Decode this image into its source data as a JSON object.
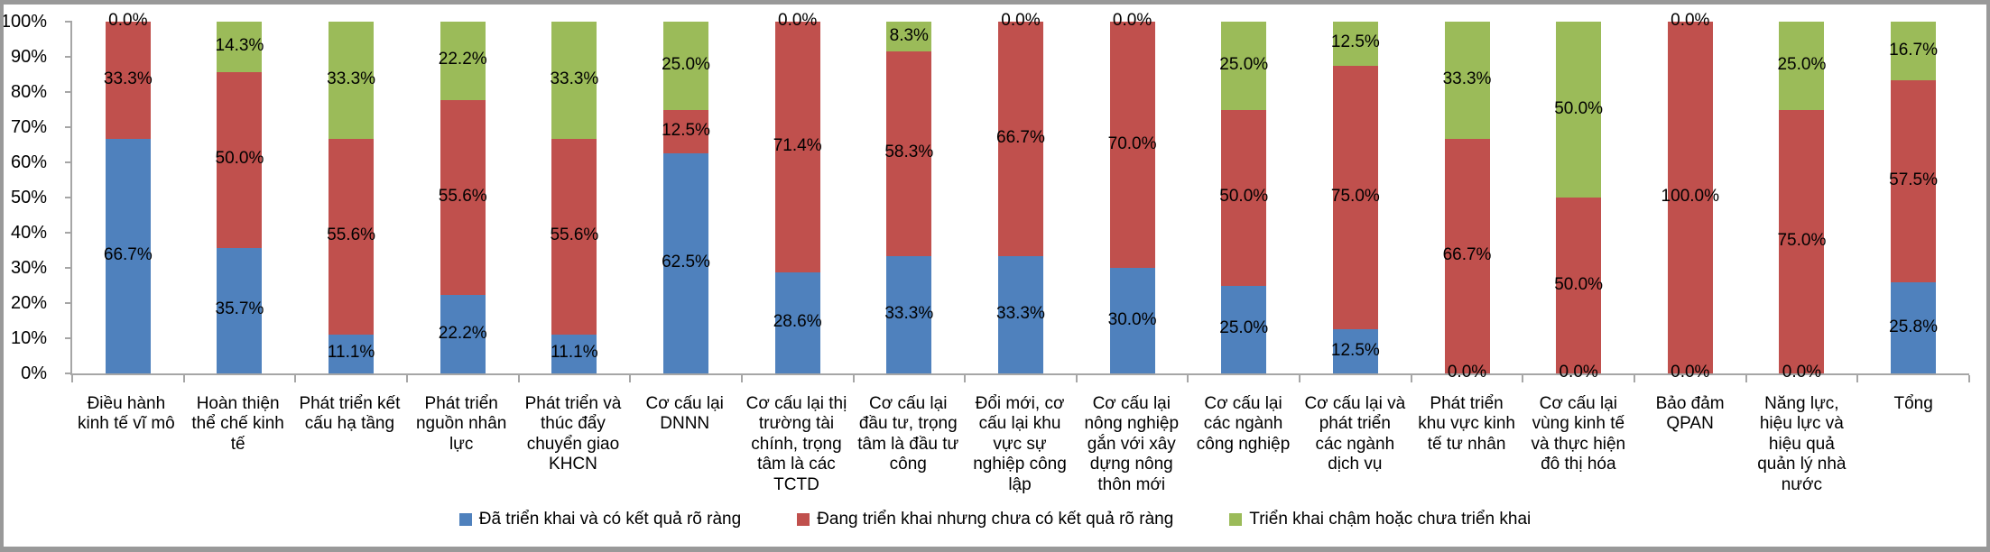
{
  "chart_data": {
    "type": "bar",
    "variant": "stacked-100-percent",
    "grid": false,
    "legend_position": "bottom",
    "data_labels": true,
    "label_format": "one-decimal-percent",
    "categories": [
      "Điều hành kinh tế vĩ mô",
      "Hoàn thiện thể chế kinh tế",
      "Phát triển kết cấu hạ tầng",
      "Phát triển nguồn nhân lực",
      "Phát triển và thúc đẩy chuyển giao KHCN",
      "Cơ cấu lại DNNN",
      "Cơ cấu lại thị trường tài chính, trọng tâm là các TCTD",
      "Cơ cấu lại đầu tư, trọng tâm là đầu tư công",
      "Đổi mới, cơ cấu lại khu vực sự nghiệp công lập",
      "Cơ cấu lại nông nghiệp gắn với xây dựng nông thôn mới",
      "Cơ cấu lại các ngành công nghiệp",
      "Cơ cấu lại và phát triển các ngành dịch vụ",
      "Phát triển khu vực kinh tế tư nhân",
      "Cơ cấu lại vùng kinh tế và thực hiện đô thị hóa",
      "Bảo đảm QPAN",
      "Năng lực, hiệu lực và hiệu quả quản lý nhà nước",
      "Tổng"
    ],
    "series": [
      {
        "key": "completed",
        "name": "Đã triển khai và có kết quả rõ ràng",
        "color": "#4F81BD",
        "values": [
          66.7,
          35.7,
          11.1,
          22.2,
          11.1,
          62.5,
          28.6,
          33.3,
          33.3,
          30.0,
          25.0,
          12.5,
          0.0,
          0.0,
          0.0,
          0.0,
          25.8
        ]
      },
      {
        "key": "ongoing",
        "name": "Đang triển khai nhưng chưa có kết quả rõ ràng",
        "color": "#C0504D",
        "values": [
          33.3,
          50.0,
          55.6,
          55.6,
          55.6,
          12.5,
          71.4,
          58.3,
          66.7,
          70.0,
          50.0,
          75.0,
          66.7,
          50.0,
          100.0,
          75.0,
          57.5
        ]
      },
      {
        "key": "delayed",
        "name": "Triển khai chậm hoặc chưa triển khai",
        "color": "#9BBB59",
        "values": [
          0.0,
          14.3,
          33.3,
          22.2,
          33.3,
          25.0,
          0.0,
          8.3,
          0.0,
          0.0,
          25.0,
          12.5,
          33.3,
          50.0,
          0.0,
          25.0,
          16.7
        ]
      }
    ],
    "y_axis": {
      "min": 0,
      "max": 100,
      "step": 10,
      "tick_labels": [
        "0%",
        "10%",
        "20%",
        "30%",
        "40%",
        "50%",
        "60%",
        "70%",
        "80%",
        "90%",
        "100%"
      ]
    }
  },
  "colors": {
    "axis": "#A6A6A6",
    "text": "#000000",
    "frame_border": "#999999",
    "background": "#FFFFFF"
  }
}
